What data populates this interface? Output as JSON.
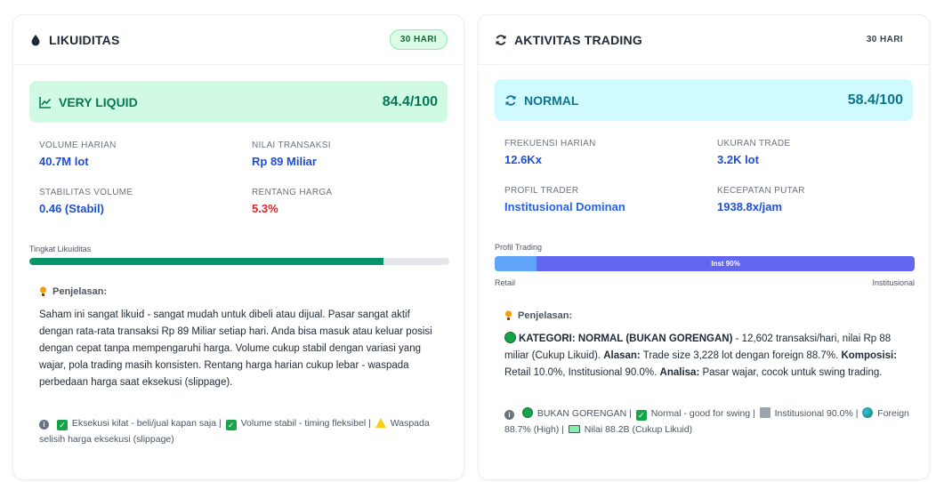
{
  "liquidity": {
    "title": "LIKUIDITAS",
    "period": "30 HARI",
    "status_label": "VERY LIQUID",
    "score": "84.4/100",
    "level": 0.844,
    "metrics": [
      {
        "label": "VOLUME HARIAN",
        "value": "40.7M lot"
      },
      {
        "label": "NILAI TRANSAKSI",
        "value": "Rp 89 Miliar"
      },
      {
        "label": "STABILITAS VOLUME",
        "value": "0.46 (Stabil)"
      },
      {
        "label": "RENTANG HARGA",
        "value": "5.3%"
      }
    ],
    "bar_label": "Tingkat Likuiditas",
    "explain_title": "Penjelasan:",
    "explain_text": "Saham ini sangat likuid - sangat mudah untuk dibeli atau dijual. Pasar sangat aktif dengan rata-rata transaksi Rp 89 Miliar setiap hari. Anda bisa masuk atau keluar posisi dengan cepat tanpa mempengaruhi harga. Volume cukup stabil dengan variasi yang wajar, pola trading masih konsisten. Rentang harga harian cukup lebar - waspada perbedaan harga saat eksekusi (slippage).",
    "footnote": {
      "part1": "Eksekusi kilat - beli/jual kapan saja |",
      "part2": "Volume stabil - timing fleksibel |",
      "part3": "Waspada selisih harga eksekusi (slippage)"
    },
    "colors": {
      "accent": "#047857",
      "fill": "#059669",
      "bg": "#d1fae5"
    }
  },
  "trading": {
    "title": "AKTIVITAS TRADING",
    "period": "30 HARI",
    "status_label": "NORMAL",
    "score": "58.4/100",
    "metrics": [
      {
        "label": "FREKUENSI HARIAN",
        "value": "12.6Kx"
      },
      {
        "label": "UKURAN TRADE",
        "value": "3.2K lot"
      },
      {
        "label": "PROFIL TRADER",
        "value": "Institusional Dominan"
      },
      {
        "label": "KECEPATAN PUTAR",
        "value": "1938.8x/jam"
      }
    ],
    "profile_label": "Profil Trading",
    "retail_fraction": 0.1,
    "inst_fraction": 0.9,
    "inst_bar_text": "Inst 90%",
    "retail_label": "Retail",
    "inst_label": "Institusional",
    "explain_title": "Penjelasan:",
    "explain": {
      "cat": "KATEGORI: NORMAL (BUKAN GORENGAN)",
      "t1": " - 12,602 transaksi/hari, nilai Rp 88 miliar (Cukup Likuid). ",
      "alasan": "Alasan:",
      "t2": " Trade size 3,228 lot dengan foreign 88.7%. ",
      "komposisi": "Komposisi:",
      "t3": " Retail 10.0%, Institusional 90.0%. ",
      "analisa": "Analisa:",
      "t4": " Pasar wajar, cocok untuk swing trading."
    },
    "footnote": {
      "p1": "BUKAN GORENGAN |",
      "p2": "Normal - good for swing |",
      "p3": "Institusional 90.0% |",
      "p4": "Foreign 88.7% (High) |",
      "p5": "Nilai 88.2B (Cukup Likuid)"
    },
    "colors": {
      "accent": "#0e7490",
      "retail": "#60a5fa",
      "inst": "#6366f1",
      "bg": "#cffafe"
    }
  },
  "icons": [
    "droplet-icon",
    "chart-line-icon",
    "refresh-icon",
    "lightbulb-icon",
    "info-icon",
    "check-icon",
    "warning-icon",
    "green-circle-icon",
    "bar-chart-icon",
    "globe-icon",
    "money-icon"
  ]
}
